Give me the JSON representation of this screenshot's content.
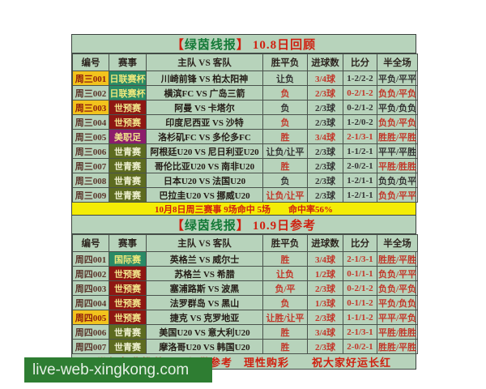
{
  "colors": {
    "panel_bg": "#b7d3bb",
    "accent_red": "#cf2010",
    "brand_green": "#157a38",
    "highlight_gold": "#f2c31d",
    "badge_teal": "#2a8a66",
    "badge_darkred": "#8e1713",
    "badge_purple": "#8c1c6b",
    "badge_olive": "#5d6b20",
    "summary_yellow": "#f4ec05",
    "watermark_green": "#2e7d32"
  },
  "columns": [
    "编号",
    "赛事",
    "主队 VS 客队",
    "胜平负",
    "进球数",
    "比分",
    "半全场"
  ],
  "review": {
    "title": {
      "open": "【",
      "brand": "绿茵线报",
      "close": "】",
      "rest": "10.8日回顾"
    },
    "rows": [
      {
        "id": "周三001",
        "hl": true,
        "league": "日联赛杯",
        "league_color": "teal",
        "match": "川崎前锋 VS 柏太阳神",
        "wdl": "让负",
        "goals": "3/4球",
        "score": "1-2/2-2",
        "hf": "平负/平平",
        "hits": [
          false,
          true,
          false,
          false
        ]
      },
      {
        "id": "周三002",
        "hl": false,
        "league": "日联赛杯",
        "league_color": "teal",
        "match": "横滨FC VS 广岛三箭",
        "wdl": "负",
        "goals": "2/3球",
        "score": "0-2/1-2",
        "hf": "负负/平负",
        "hits": [
          true,
          true,
          true,
          true
        ]
      },
      {
        "id": "周三003",
        "hl": true,
        "league": "世预赛",
        "league_color": "darkred",
        "match": "阿曼 VS 卡塔尔",
        "wdl": "负",
        "goals": "2/3球",
        "score": "0-2/1-2",
        "hf": "平负/负负",
        "hits": [
          false,
          false,
          false,
          false
        ]
      },
      {
        "id": "周三004",
        "hl": false,
        "league": "世预赛",
        "league_color": "darkred",
        "match": "印度尼西亚 VS 沙特",
        "wdl": "负",
        "goals": "2/3球",
        "score": "1-2/0-2",
        "hf": "负负/平负",
        "hits": [
          true,
          false,
          false,
          true
        ]
      },
      {
        "id": "周三005",
        "hl": false,
        "league": "美职足",
        "league_color": "purple",
        "match": "洛杉矶FC VS 多伦多FC",
        "wdl": "胜",
        "goals": "3/4球",
        "score": "2-1/3-1",
        "hf": "胜胜/平胜",
        "hits": [
          true,
          true,
          true,
          true
        ]
      },
      {
        "id": "周三006",
        "hl": false,
        "league": "世青赛",
        "league_color": "olive",
        "match": "阿根廷U20 VS 尼日利亚U20",
        "wdl": "让负/让平",
        "goals": "2/3球",
        "score": "1-1/2-1",
        "hf": "平平/平胜",
        "hits": [
          false,
          false,
          false,
          false
        ]
      },
      {
        "id": "周三007",
        "hl": false,
        "league": "世青赛",
        "league_color": "olive",
        "match": "哥伦比亚U20 VS 南非U20",
        "wdl": "胜",
        "goals": "2/3球",
        "score": "2-0/2-1",
        "hf": "平胜/胜胜",
        "hits": [
          true,
          false,
          false,
          true
        ]
      },
      {
        "id": "周三008",
        "hl": false,
        "league": "世青赛",
        "league_color": "olive",
        "match": "日本U20 VS 法国U20",
        "wdl": "负",
        "goals": "2/3球",
        "score": "1-2/1-1",
        "hf": "负负/负平",
        "hits": [
          false,
          false,
          false,
          false
        ]
      },
      {
        "id": "周三009",
        "hl": false,
        "league": "世青赛",
        "league_color": "olive",
        "match": "巴拉圭U20 VS 挪威U20",
        "wdl": "让负/让平",
        "goals": "2/3球",
        "score": "1-2/1-1",
        "hf": "负负/平平",
        "hits": [
          true,
          false,
          false,
          true
        ]
      }
    ],
    "summary": "10月8日周三赛事 9场命中 5场　　命中率56%"
  },
  "forecast": {
    "title": {
      "open": "【",
      "brand": "绿茵线报",
      "close": "】",
      "rest": "10.9日参考"
    },
    "rows": [
      {
        "id": "周四001",
        "hl": false,
        "league": "国际赛",
        "league_color": "teal",
        "match": "英格兰 VS 威尔士",
        "wdl": "胜",
        "goals": "3/4球",
        "score": "2-1/3-1",
        "hf": "胜胜/平胜",
        "hits": [
          true,
          true,
          true,
          true
        ]
      },
      {
        "id": "周四002",
        "hl": false,
        "league": "世预赛",
        "league_color": "darkred",
        "match": "苏格兰 VS 希腊",
        "wdl": "让负",
        "goals": "1/2球",
        "score": "0-1/1-1",
        "hf": "负负/平平",
        "hits": [
          true,
          true,
          true,
          true
        ]
      },
      {
        "id": "周四003",
        "hl": false,
        "league": "世预赛",
        "league_color": "darkred",
        "match": "塞浦路斯 VS 波黑",
        "wdl": "负/平",
        "goals": "2/3球",
        "score": "0-2/1-2",
        "hf": "负负/平负",
        "hits": [
          true,
          true,
          true,
          true
        ]
      },
      {
        "id": "周四004",
        "hl": false,
        "league": "世预赛",
        "league_color": "darkred",
        "match": "法罗群岛 VS 黑山",
        "wdl": "负",
        "goals": "1/3球",
        "score": "0-1/1-2",
        "hf": "平负/负负",
        "hits": [
          true,
          true,
          true,
          true
        ]
      },
      {
        "id": "周四005",
        "hl": true,
        "league": "世预赛",
        "league_color": "darkred",
        "match": "捷克 VS 克罗地亚",
        "wdl": "让胜/让平",
        "goals": "2/3球",
        "score": "1-1/1-2",
        "hf": "平平/平负",
        "hits": [
          true,
          true,
          true,
          true
        ]
      },
      {
        "id": "周四006",
        "hl": false,
        "league": "世青赛",
        "league_color": "olive",
        "match": "美国U20 VS 意大利U20",
        "wdl": "胜",
        "goals": "3/4球",
        "score": "2-1/3-1",
        "hf": "平胜/胜胜",
        "hits": [
          true,
          true,
          true,
          true
        ]
      },
      {
        "id": "周四007",
        "hl": false,
        "league": "世青赛",
        "league_color": "olive",
        "match": "摩洛哥U20 VS 韩国U20",
        "wdl": "胜",
        "goals": "2/3球",
        "score": "2-0/2-1",
        "hf": "胜胜/平胜",
        "hits": [
          true,
          true,
          true,
          true
        ]
      }
    ]
  },
  "footer": {
    "text": "常年免费推荐　　仅供参考　理性购彩　　祝大家好运长红"
  },
  "watermark": {
    "text": "live-web-xingkong.com"
  }
}
